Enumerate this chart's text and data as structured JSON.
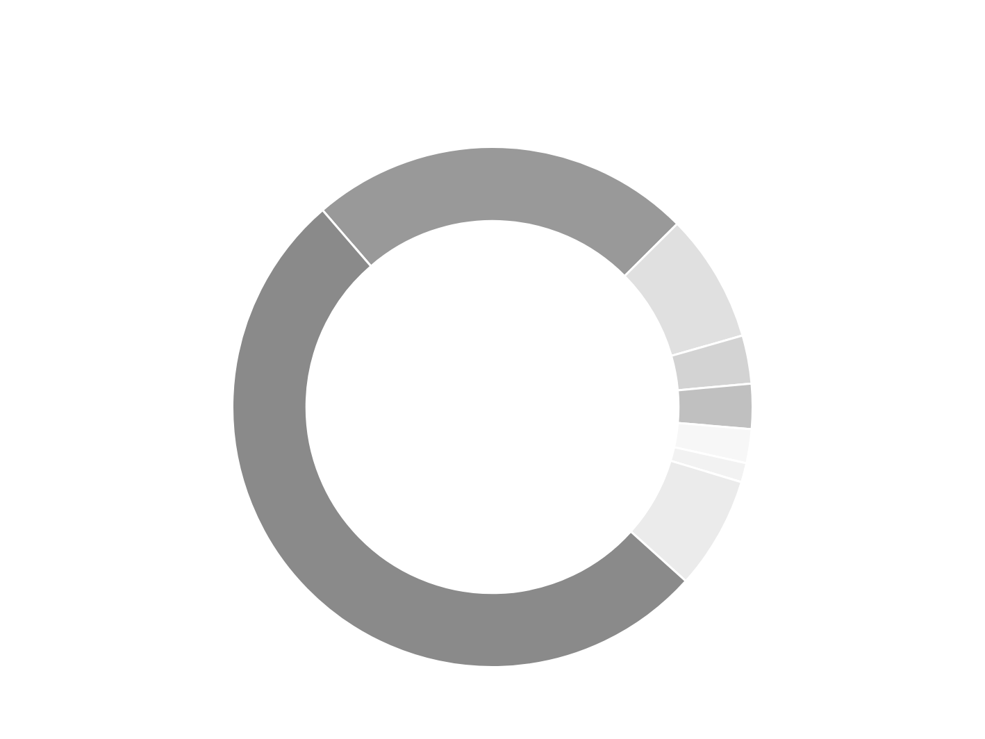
{
  "chart_data": {
    "type": "donut",
    "categories": [
      null,
      null,
      null,
      null,
      null,
      null,
      null,
      null
    ],
    "values": [
      23.9,
      8.0,
      3.0,
      2.8,
      2.1,
      1.2,
      7.0,
      52.0
    ],
    "colors": [
      "#999999",
      "#e0e0e0",
      "#d3d3d3",
      "#c0c0c0",
      "#f7f7f7",
      "#f2f2f2",
      "#ebebeb",
      "#8a8a8a"
    ],
    "legend": false
  }
}
